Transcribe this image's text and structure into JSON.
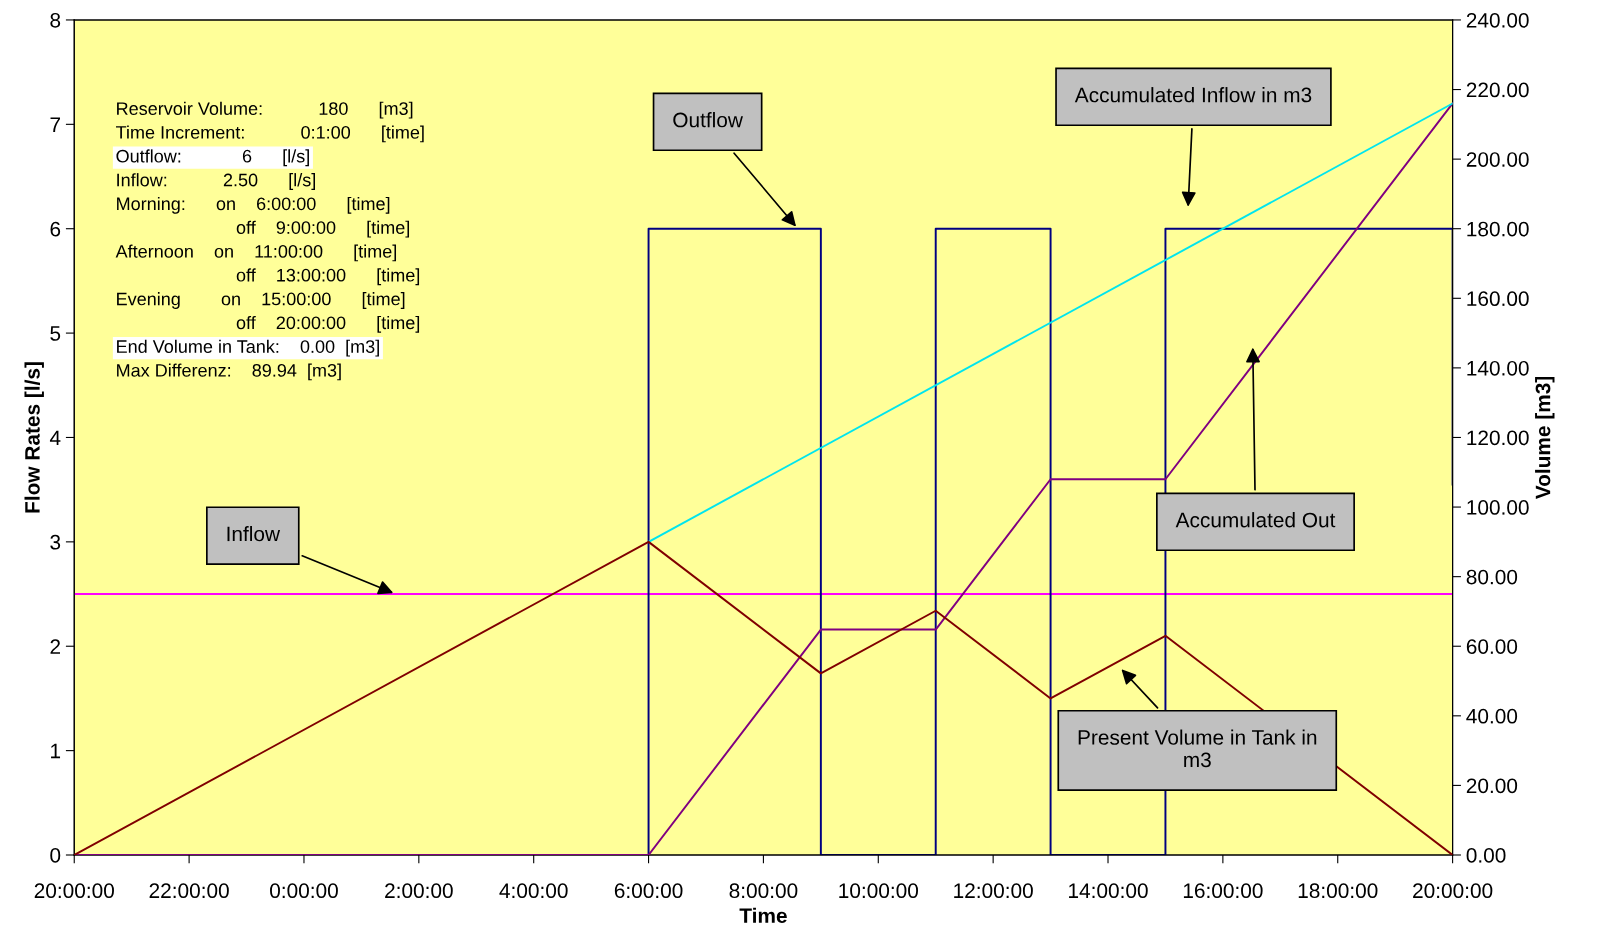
{
  "chart_data": {
    "type": "line",
    "xlabel": "Time",
    "ylabel": "Flow Rates [l/s]",
    "y2label": "Volume [m3]",
    "xlim": [
      "2000-01-01T20:00",
      "2000-01-02T20:00"
    ],
    "xticks": [
      {
        "value": "2000-01-01T20:00",
        "label": "20:00:00"
      },
      {
        "value": "2000-01-01T22:00",
        "label": "22:00:00"
      },
      {
        "value": "2000-01-02T00:00",
        "label": "0:00:00"
      },
      {
        "value": "2000-01-02T02:00",
        "label": "2:00:00"
      },
      {
        "value": "2000-01-02T04:00",
        "label": "4:00:00"
      },
      {
        "value": "2000-01-02T06:00",
        "label": "6:00:00"
      },
      {
        "value": "2000-01-02T08:00",
        "label": "8:00:00"
      },
      {
        "value": "2000-01-02T10:00",
        "label": "10:00:00"
      },
      {
        "value": "2000-01-02T12:00",
        "label": "12:00:00"
      },
      {
        "value": "2000-01-02T14:00",
        "label": "14:00:00"
      },
      {
        "value": "2000-01-02T16:00",
        "label": "16:00:00"
      },
      {
        "value": "2000-01-02T18:00",
        "label": "18:00:00"
      },
      {
        "value": "2000-01-02T20:00",
        "label": "20:00:00"
      }
    ],
    "ylim": [
      0,
      8
    ],
    "yticks": [
      0,
      1,
      2,
      3,
      4,
      5,
      6,
      7,
      8
    ],
    "y2lim": [
      0,
      240
    ],
    "y2ticks": [
      {
        "value": 0,
        "label": "0.00"
      },
      {
        "value": 20,
        "label": "20.00"
      },
      {
        "value": 40,
        "label": "40.00"
      },
      {
        "value": 60,
        "label": "60.00"
      },
      {
        "value": 80,
        "label": "80.00"
      },
      {
        "value": 100,
        "label": "100.00"
      },
      {
        "value": 120,
        "label": "120.00"
      },
      {
        "value": 140,
        "label": "140.00"
      },
      {
        "value": 160,
        "label": "160.00"
      },
      {
        "value": 180,
        "label": "180.00"
      },
      {
        "value": 200,
        "label": "200.00"
      },
      {
        "value": 220,
        "label": "220.00"
      },
      {
        "value": 240,
        "label": "240.00"
      }
    ],
    "series": [
      {
        "color": "#ff00ff",
        "x": [
          "2000-01-01T20:00",
          "2000-01-02T20:00"
        ],
        "values": [
          2.5,
          2.5
        ]
      },
      {
        "color": "#000080",
        "x": [
          "2000-01-01T20:00",
          "2000-01-02T06:00",
          "2000-01-02T06:00",
          "2000-01-02T09:00",
          "2000-01-02T09:00",
          "2000-01-02T11:00",
          "2000-01-02T11:00",
          "2000-01-02T13:00",
          "2000-01-02T13:00",
          "2000-01-02T15:00",
          "2000-01-02T15:00",
          "2000-01-02T20:00",
          "2000-01-02T20:00"
        ],
        "values": [
          0,
          0,
          6,
          6,
          0,
          0,
          6,
          6,
          0,
          0,
          6,
          6,
          3.55
        ]
      },
      {
        "color": "#800080",
        "axis": "y2",
        "x": [
          "2000-01-01T20:00",
          "2000-01-02T06:00",
          "2000-01-02T09:00",
          "2000-01-02T11:00",
          "2000-01-02T13:00",
          "2000-01-02T15:00",
          "2000-01-02T20:00"
        ],
        "values": [
          0,
          0,
          64.8,
          64.8,
          108,
          108,
          216
        ]
      },
      {
        "color": "#00e5ee",
        "axis": "y2",
        "x": [
          "2000-01-02T06:00",
          "2000-01-02T20:00"
        ],
        "values": [
          90,
          216
        ]
      },
      {
        "color": "#800000",
        "axis": "y2",
        "x": [
          "2000-01-01T20:00",
          "2000-01-02T06:00",
          "2000-01-02T09:00",
          "2000-01-02T11:00",
          "2000-01-02T13:00",
          "2000-01-02T15:00",
          "2000-01-02T20:00"
        ],
        "values": [
          0,
          90,
          52.2,
          70.2,
          45,
          63,
          0
        ]
      }
    ],
    "annotations": [
      {
        "text": "Outflow",
        "x": "2000-01-02T08:36",
        "y": 6.0
      },
      {
        "text": "Inflow",
        "x": "2000-01-02T01:36",
        "y": 2.5
      },
      {
        "text": "Present Volume in Tank in\nm3",
        "x": "2000-01-02T14:12",
        "y": 1.8
      },
      "Accumulated Inflow in m3",
      "Accumulated Out",
      "Reservoir Volume:           180      [m3]",
      "Time Increment:           0:1:00      [time]",
      "Outflow:            6      [l/s]",
      "Inflow:           2.50      [l/s]",
      "Morning:      on    6:00:00      [time]",
      "                        off    9:00:00      [time]",
      "Afternoon    on    11:00:00      [time]",
      "                        off    13:00:00      [time]",
      "Evening        on    15:00:00      [time]",
      "                        off    20:00:00      [time]",
      "End Volume in Tank:    0.00  [m3]",
      "Max Differenz:    89.94  [m3]"
    ]
  }
}
